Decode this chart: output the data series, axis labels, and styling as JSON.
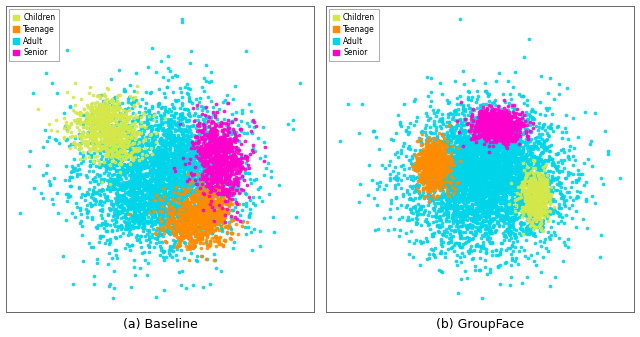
{
  "title_a": "(a) Baseline",
  "title_b": "(b) GroupFace",
  "categories": [
    "Children",
    "Teenage",
    "Adult",
    "Senior"
  ],
  "colors": {
    "Children": "#d4e84a",
    "Teenage": "#ff8c00",
    "Adult": "#00d4e8",
    "Senior": "#ff00cc"
  },
  "seed": 42,
  "marker_size": 7,
  "alpha": 0.9,
  "figsize": [
    6.4,
    3.37
  ],
  "dpi": 100
}
